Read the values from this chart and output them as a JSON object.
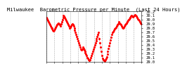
{
  "title": "Milwaukee  Barometric Pressure per Minute  (Last 24 Hours)",
  "line_color": "#FF0000",
  "bg_color": "#FFFFFF",
  "plot_bg_color": "#FFFFFF",
  "grid_color": "#AAAAAA",
  "ylim": [
    29.0,
    30.2
  ],
  "yticks": [
    29.0,
    29.1,
    29.2,
    29.3,
    29.4,
    29.5,
    29.6,
    29.7,
    29.8,
    29.9,
    30.0,
    30.1,
    30.2
  ],
  "ytick_labels": [
    "29.0",
    "29.1",
    "29.2",
    "29.3",
    "29.4",
    "29.5",
    "29.6",
    "29.7",
    "29.8",
    "29.9",
    "30.0",
    "30.1",
    "30.2"
  ],
  "num_points": 144,
  "y_values": [
    30.05,
    30.02,
    29.98,
    29.95,
    29.92,
    29.88,
    29.85,
    29.82,
    29.8,
    29.78,
    29.75,
    29.73,
    29.75,
    29.78,
    29.82,
    29.85,
    29.88,
    29.9,
    29.92,
    29.9,
    29.88,
    29.85,
    29.9,
    29.95,
    30.0,
    30.05,
    30.1,
    30.08,
    30.05,
    30.02,
    29.98,
    29.95,
    29.92,
    29.88,
    29.85,
    29.8,
    29.82,
    29.85,
    29.88,
    29.9,
    29.88,
    29.85,
    29.8,
    29.75,
    29.7,
    29.65,
    29.6,
    29.55,
    29.5,
    29.45,
    29.4,
    29.35,
    29.3,
    29.28,
    29.3,
    29.35,
    29.32,
    29.28,
    29.25,
    29.22,
    29.18,
    29.15,
    29.1,
    29.08,
    29.05,
    29.03,
    29.05,
    29.1,
    29.15,
    29.2,
    29.25,
    29.3,
    29.35,
    29.4,
    29.45,
    29.5,
    29.55,
    29.6,
    29.65,
    29.7,
    29.55,
    29.45,
    29.35,
    29.25,
    29.15,
    29.08,
    29.05,
    29.03,
    29.02,
    29.05,
    29.08,
    29.12,
    29.18,
    29.25,
    29.32,
    29.38,
    29.45,
    29.52,
    29.58,
    29.65,
    29.7,
    29.72,
    29.75,
    29.78,
    29.8,
    29.82,
    29.85,
    29.88,
    29.9,
    29.92,
    29.95,
    29.92,
    29.9,
    29.88,
    29.85,
    29.82,
    29.8,
    29.82,
    29.85,
    29.88,
    29.9,
    29.92,
    29.95,
    29.98,
    30.0,
    30.02,
    30.05,
    30.05,
    30.08,
    30.1,
    30.08,
    30.06,
    30.08,
    30.1,
    30.12,
    30.1,
    30.08,
    30.05,
    30.02,
    30.0,
    29.98,
    29.95,
    29.92,
    29.9
  ],
  "xtick_positions": [
    0,
    12,
    24,
    36,
    48,
    60,
    72,
    84,
    96,
    108,
    120,
    132,
    143
  ],
  "xtick_labels": [
    "",
    "",
    "",
    "",
    "",
    "",
    "",
    "",
    "",
    "",
    "",
    "",
    ""
  ],
  "vgrid_positions": [
    0,
    12,
    24,
    36,
    48,
    60,
    72,
    84,
    96,
    108,
    120,
    132,
    143
  ],
  "title_fontsize": 5,
  "tick_fontsize": 4,
  "marker_size": 1.2,
  "linewidth": 0.5
}
